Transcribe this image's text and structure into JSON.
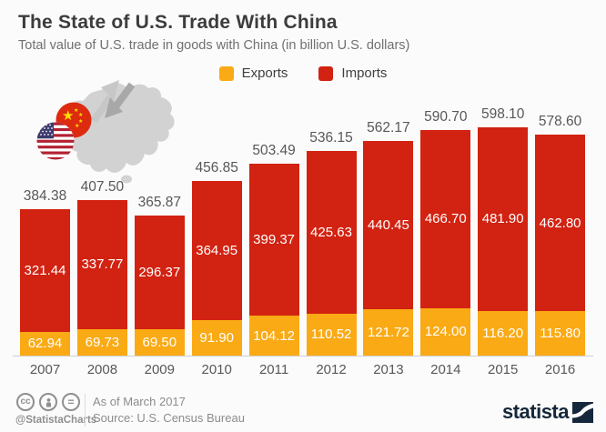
{
  "header": {
    "title": "The State of U.S. Trade With China",
    "subtitle": "Total value of U.S. trade in goods with China (in billion U.S. dollars)"
  },
  "legend": [
    {
      "label": "Exports",
      "color": "#faaa14"
    },
    {
      "label": "Imports",
      "color": "#d22211"
    }
  ],
  "colors": {
    "exports": "#faaa14",
    "imports": "#d22211",
    "value_label": "#ffffff",
    "total_label": "#585858",
    "axis_line": "#cfcfcf",
    "map_gray": "#d2d2d2",
    "brand_navy": "#15273a"
  },
  "icons": {
    "graphic": [
      "china-map",
      "trade-arrows",
      "china-flag",
      "us-flag"
    ],
    "footer_license": [
      "cc-icon",
      "attribution-icon",
      "equals-icon"
    ]
  },
  "chart_data": {
    "type": "bar",
    "stacked": true,
    "title": "The State of U.S. Trade With China",
    "subtitle": "Total value of U.S. trade in goods with China (in billion U.S. dollars)",
    "categories": [
      "2007",
      "2008",
      "2009",
      "2010",
      "2011",
      "2012",
      "2013",
      "2014",
      "2015",
      "2016"
    ],
    "series": [
      {
        "name": "Exports",
        "color": "#faaa14",
        "values": [
          62.94,
          69.73,
          69.5,
          91.9,
          104.12,
          110.52,
          121.72,
          124.0,
          116.2,
          115.8
        ]
      },
      {
        "name": "Imports",
        "color": "#d22211",
        "values": [
          321.44,
          337.77,
          296.37,
          364.95,
          399.37,
          425.63,
          440.45,
          466.7,
          481.9,
          462.8
        ]
      }
    ],
    "totals": [
      384.38,
      407.5,
      365.87,
      456.85,
      503.49,
      536.15,
      562.17,
      590.7,
      598.1,
      578.6
    ],
    "xlabel": "",
    "ylabel": "",
    "ylim": [
      0,
      640
    ],
    "grid": false,
    "legend_position": "top-center",
    "value_labels": "inside-segments-and-total-above"
  },
  "footer": {
    "handle": "@StatistaCharts",
    "as_of": "As of March 2017",
    "source": "Source: U.S. Census Bureau",
    "brand": "statista"
  }
}
